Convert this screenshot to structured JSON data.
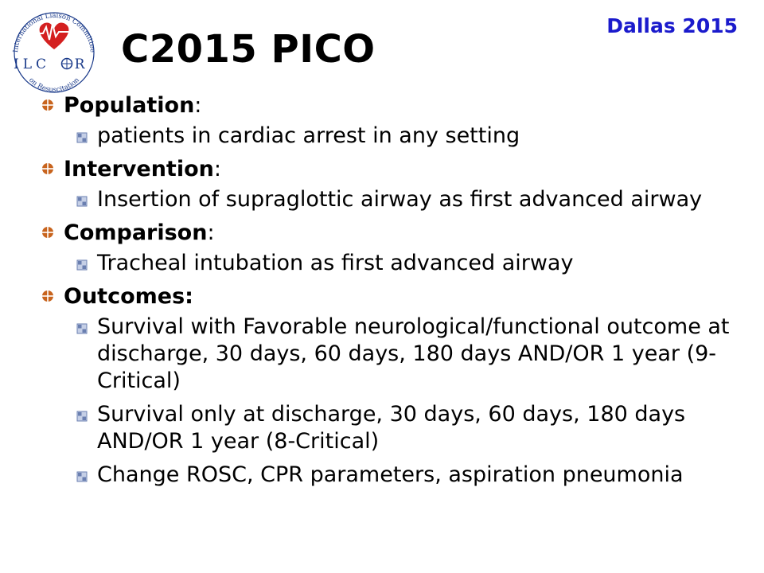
{
  "logo": {
    "arc_top": "International Liaison Committee",
    "arc_bottom": "on Resuscitation",
    "acronym_left": "ILC",
    "acronym_right": "R",
    "heart_color": "#d42020",
    "ring_color": "#1a3a8a"
  },
  "event": "Dallas 2015",
  "title": "C2015 PICO",
  "sections": [
    {
      "label": "Population",
      "suffix": ":",
      "items": [
        "patients in cardiac arrest in any setting"
      ]
    },
    {
      "label": "Intervention",
      "suffix": ":",
      "items": [
        "Insertion of supraglottic airway as first advanced airway"
      ]
    },
    {
      "label": "Comparison",
      "suffix": ":",
      "items": [
        "Tracheal intubation as first advanced airway"
      ]
    },
    {
      "label": "Outcomes:",
      "suffix": "",
      "items": [
        "Survival with Favorable neurological/functional outcome at discharge, 30 days, 60 days, 180 days AND/OR 1 year (9-Critical)",
        "Survival only at discharge, 30 days, 60 days, 180 days AND/OR 1 year (8-Critical)",
        "Change ROSC, CPR parameters, aspiration pneumonia"
      ]
    }
  ],
  "colors": {
    "event_text": "#1a1acc",
    "bullet1": "#c8641e",
    "bullet2": "#6a7fb0"
  }
}
